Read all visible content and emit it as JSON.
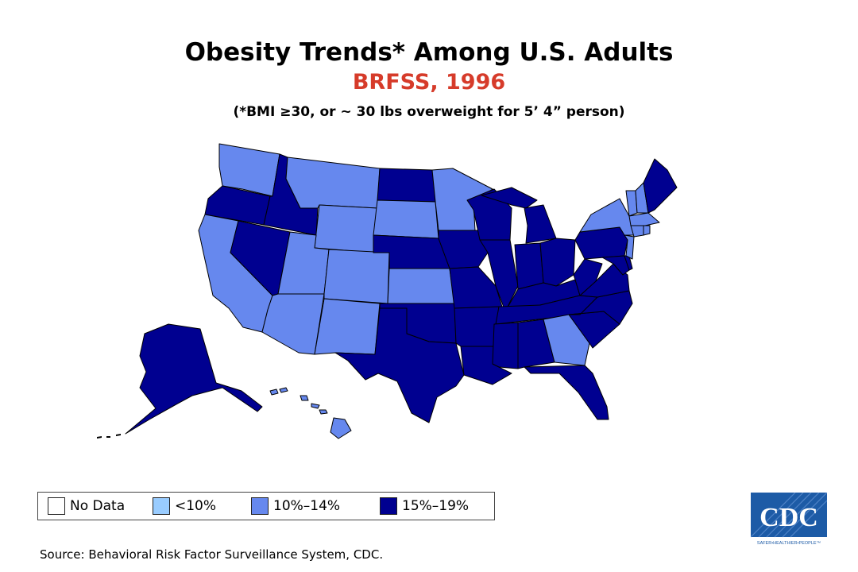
{
  "title": "Obesity Trends* Among U.S. Adults",
  "subtitle": "BRFSS, 1996",
  "note": "(*BMI ≥30, or ~ 30 lbs overweight for 5’ 4” person)",
  "colors": {
    "subtitle": "#d63b2a",
    "no_data": "#ffffff",
    "lt10": "#99ccff",
    "10_14": "#6688ee",
    "15_19": "#000090"
  },
  "legend": [
    {
      "key": "no_data",
      "label": "No Data"
    },
    {
      "key": "lt10",
      "label": "<10%"
    },
    {
      "key": "10_14",
      "label": "10%–14%"
    },
    {
      "key": "15_19",
      "label": "15%–19%"
    }
  ],
  "states": {
    "WA": "10_14",
    "OR": "15_19",
    "CA": "10_14",
    "NV": "15_19",
    "ID": "15_19",
    "MT": "10_14",
    "WY": "10_14",
    "UT": "10_14",
    "AZ": "10_14",
    "CO": "10_14",
    "NM": "10_14",
    "ND": "15_19",
    "SD": "10_14",
    "NE": "15_19",
    "KS": "10_14",
    "OK": "15_19",
    "TX": "15_19",
    "MN": "10_14",
    "IA": "15_19",
    "MO": "15_19",
    "AR": "15_19",
    "LA": "15_19",
    "WI": "15_19",
    "IL": "15_19",
    "MI": "15_19",
    "IN": "15_19",
    "OH": "15_19",
    "KY": "15_19",
    "TN": "15_19",
    "MS": "15_19",
    "AL": "15_19",
    "GA": "10_14",
    "FL": "15_19",
    "SC": "15_19",
    "NC": "15_19",
    "VA": "15_19",
    "WV": "15_19",
    "MD": "15_19",
    "DE": "15_19",
    "PA": "15_19",
    "NJ": "10_14",
    "NY": "10_14",
    "CT": "10_14",
    "RI": "10_14",
    "MA": "10_14",
    "VT": "10_14",
    "NH": "10_14",
    "ME": "15_19",
    "AK": "15_19",
    "HI": "10_14"
  },
  "source": "Source: Behavioral Risk Factor Surveillance System, CDC.",
  "logo": {
    "text": "CDC",
    "tagline": "SAFER•HEALTHIER•PEOPLE™"
  }
}
